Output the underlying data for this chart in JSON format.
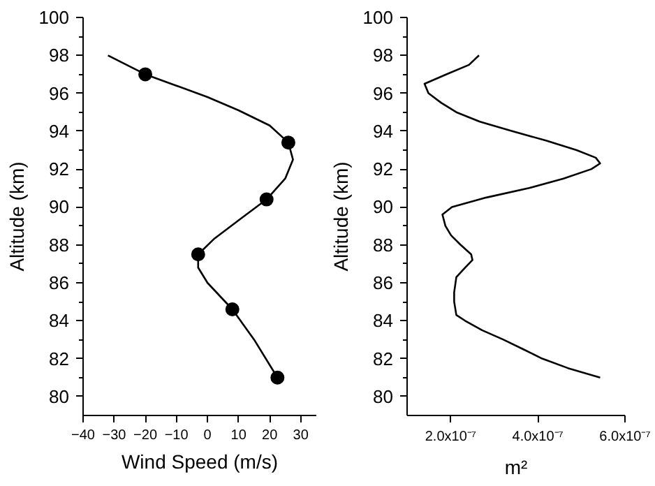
{
  "chart_data": [
    {
      "type": "line",
      "xlabel": "Wind Speed (m/s)",
      "ylabel": "Altitude (km)",
      "xlim": [
        -40,
        35
      ],
      "xticks": [
        -40,
        -30,
        -20,
        -10,
        0,
        10,
        20,
        30
      ],
      "ylim": [
        79,
        100
      ],
      "yticks": [
        80,
        82,
        84,
        86,
        88,
        90,
        92,
        94,
        96,
        98,
        100
      ],
      "grid": false,
      "series": [
        {
          "color": "#000000",
          "x": [
            -32,
            -26,
            -20,
            -10,
            0,
            10,
            20,
            26,
            27.5,
            25,
            19,
            10,
            2,
            -3,
            -3,
            0,
            8,
            15,
            22.5
          ],
          "values": [
            98,
            97.5,
            97,
            96.4,
            95.8,
            95.1,
            94.3,
            93.4,
            92.5,
            91.5,
            90.4,
            89.3,
            88.3,
            87.5,
            86.8,
            86,
            84.6,
            83,
            81
          ]
        },
        {
          "type": "scatter",
          "marker": "circle",
          "color": "#000000",
          "x": [
            -20,
            26,
            19,
            -3,
            8,
            22.5
          ],
          "values": [
            97,
            93.4,
            90.4,
            87.5,
            84.6,
            81
          ]
        }
      ]
    },
    {
      "type": "line",
      "xlabel": "m²",
      "ylabel": "Altitude (km)",
      "xlim": [
        1e-07,
        6e-07
      ],
      "xticks": [
        {
          "value": 2e-07,
          "label": "2.0x10⁻⁷"
        },
        {
          "value": 4e-07,
          "label": "4.0x10⁻⁷"
        },
        {
          "value": 6e-07,
          "label": "6.0x10⁻⁷"
        }
      ],
      "ylim": [
        79,
        100
      ],
      "yticks": [
        80,
        82,
        84,
        86,
        88,
        90,
        92,
        94,
        96,
        98,
        100
      ],
      "grid": false,
      "series": [
        {
          "color": "#000000",
          "x": [
            2.65e-07,
            2.42e-07,
            1.9e-07,
            1.4e-07,
            1.49e-07,
            1.78e-07,
            2.13e-07,
            2.67e-07,
            3.41e-07,
            4.2e-07,
            4.89e-07,
            5.33e-07,
            5.43e-07,
            5.23e-07,
            4.59e-07,
            3.8e-07,
            2.82e-07,
            2.03e-07,
            1.81e-07,
            1.88e-07,
            2.01e-07,
            2.23e-07,
            2.47e-07,
            2.5e-07,
            2.33e-07,
            2.13e-07,
            2.08e-07,
            2.08e-07,
            2.13e-07,
            2.33e-07,
            2.72e-07,
            3.21e-07,
            3.66e-07,
            4.1e-07,
            4.69e-07,
            5.43e-07
          ],
          "values": [
            98,
            97.5,
            97,
            96.5,
            96,
            95.5,
            95,
            94.5,
            94,
            93.5,
            93,
            92.6,
            92.3,
            92,
            91.5,
            91,
            90.5,
            90,
            89.6,
            89,
            88.5,
            88,
            87.5,
            87.2,
            86.8,
            86.3,
            85.5,
            85,
            84.3,
            84,
            83.5,
            83,
            82.5,
            82,
            81.5,
            81
          ]
        }
      ]
    }
  ]
}
